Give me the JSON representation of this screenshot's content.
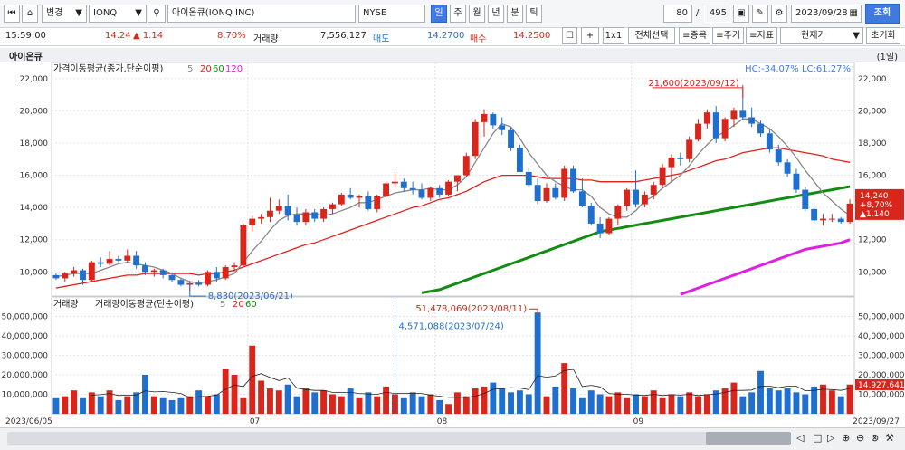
{
  "toolbar": {
    "first_icon": "first-page-icon",
    "home_icon": "home-icon",
    "mode": "변경",
    "code": "IONQ",
    "name": "아이온큐(IONQ INC)",
    "exchange": "NYSE",
    "periods": [
      "일",
      "주",
      "월",
      "년",
      "분",
      "틱"
    ],
    "count": "80",
    "total": "495",
    "date": "2023/09/28",
    "query_label": "조회"
  },
  "info": {
    "time": "15:59:00",
    "price": "14.24",
    "change": "▲ 1.14",
    "rate": "8.70%",
    "vol_label": "거래량",
    "volume": "7,556,127",
    "ask_label": "매도",
    "ask": "14.2700",
    "bid_label": "매수",
    "bid": "14.2500",
    "plus": "+",
    "ratio": "1x1",
    "select_all": "전체선택",
    "stock": "≡종목",
    "cycle": "≡주기",
    "indicator": "≡지표",
    "current_price": "현재가",
    "reset": "초기화"
  },
  "chart_title": "아이온큐",
  "chart_period": "(1일)",
  "accent": "#3f7ae0",
  "up_color": "#d8261c",
  "down_color": "#1f6fd1",
  "chart_data": [
    {
      "type": "candlestick",
      "title": "가격이동평균(종가,단순이평)",
      "ma_periods": [
        "5",
        "20",
        "60",
        "120"
      ],
      "ma_colors": [
        "#888888",
        "#e0201a",
        "#148c14",
        "#e020e0"
      ],
      "stats": "HC:-34.07% LC:61.27%",
      "ylim": [
        8500,
        23000
      ],
      "yticks": [
        "22,000",
        "20,000",
        "18,000",
        "16,000",
        "14,000",
        "12,000",
        "10,000"
      ],
      "x_labels": [
        "2023/06/05",
        "07",
        "08",
        "09",
        "2023/09/27"
      ],
      "high_annotation": "21,600(2023/09/12)",
      "low_annotation": "8,830(2023/06/21)",
      "last_price": "14,240",
      "last_rate": "+8,70%",
      "last_change": "▲1,140",
      "candles": [
        [
          9.8,
          9.9,
          9.5,
          9.6
        ],
        [
          9.6,
          10.0,
          9.4,
          9.9
        ],
        [
          9.9,
          10.3,
          9.7,
          10.1
        ],
        [
          10.1,
          10.2,
          9.2,
          9.5
        ],
        [
          9.5,
          10.7,
          9.4,
          10.6
        ],
        [
          10.6,
          10.9,
          10.3,
          10.5
        ],
        [
          10.5,
          11.3,
          10.4,
          10.8
        ],
        [
          10.8,
          11.0,
          10.6,
          10.7
        ],
        [
          10.7,
          11.4,
          10.6,
          11.0
        ],
        [
          11.0,
          11.3,
          10.2,
          10.4
        ],
        [
          10.4,
          10.6,
          9.8,
          10.0
        ],
        [
          10.0,
          10.2,
          9.7,
          10.1
        ],
        [
          10.1,
          10.2,
          9.6,
          9.8
        ],
        [
          9.8,
          9.9,
          9.4,
          9.5
        ],
        [
          9.5,
          9.6,
          9.1,
          9.2
        ],
        [
          9.2,
          9.4,
          8.83,
          9.3
        ],
        [
          9.3,
          9.5,
          9.1,
          9.2
        ],
        [
          9.2,
          10.1,
          9.1,
          10.0
        ],
        [
          10.0,
          10.3,
          9.4,
          9.6
        ],
        [
          9.6,
          10.4,
          9.5,
          10.3
        ],
        [
          10.3,
          10.6,
          10.0,
          10.4
        ],
        [
          10.4,
          13.0,
          10.3,
          12.9
        ],
        [
          12.9,
          13.5,
          12.5,
          13.3
        ],
        [
          13.3,
          13.6,
          13.0,
          13.4
        ],
        [
          13.4,
          14.6,
          13.1,
          13.8
        ],
        [
          13.8,
          14.5,
          13.6,
          14.1
        ],
        [
          14.1,
          14.8,
          13.2,
          13.5
        ],
        [
          13.5,
          14.0,
          12.9,
          13.1
        ],
        [
          13.1,
          13.9,
          12.9,
          13.7
        ],
        [
          13.7,
          13.9,
          13.1,
          13.3
        ],
        [
          13.3,
          14.0,
          13.1,
          13.9
        ],
        [
          13.9,
          14.3,
          13.6,
          14.2
        ],
        [
          14.2,
          14.9,
          14.1,
          14.8
        ],
        [
          14.8,
          15.2,
          14.5,
          14.6
        ],
        [
          14.6,
          14.8,
          14.0,
          14.7
        ],
        [
          14.7,
          15.0,
          13.8,
          13.9
        ],
        [
          13.9,
          14.8,
          13.7,
          14.7
        ],
        [
          14.7,
          15.6,
          14.6,
          15.5
        ],
        [
          15.5,
          16.2,
          15.3,
          15.6
        ],
        [
          15.6,
          15.8,
          15.0,
          15.2
        ],
        [
          15.2,
          15.6,
          14.8,
          15.1
        ],
        [
          15.1,
          15.5,
          14.5,
          14.6
        ],
        [
          14.6,
          15.3,
          14.4,
          15.2
        ],
        [
          15.2,
          15.4,
          14.6,
          14.8
        ],
        [
          14.8,
          15.7,
          14.7,
          15.6
        ],
        [
          15.6,
          16.0,
          15.0,
          16.0
        ],
        [
          16.0,
          17.4,
          15.9,
          17.2
        ],
        [
          17.2,
          19.5,
          17.0,
          19.3
        ],
        [
          19.3,
          20.1,
          18.4,
          19.8
        ],
        [
          19.8,
          19.9,
          18.9,
          19.1
        ],
        [
          19.1,
          19.6,
          18.5,
          18.8
        ],
        [
          18.8,
          19.0,
          17.5,
          17.7
        ],
        [
          17.7,
          17.9,
          16.2,
          16.2
        ],
        [
          16.2,
          16.5,
          15.3,
          15.4
        ],
        [
          15.4,
          15.8,
          14.2,
          14.4
        ],
        [
          14.4,
          15.5,
          14.3,
          15.2
        ],
        [
          15.2,
          15.5,
          14.5,
          14.6
        ],
        [
          14.6,
          16.6,
          14.4,
          16.4
        ],
        [
          16.4,
          16.6,
          14.9,
          15.0
        ],
        [
          15.0,
          15.8,
          14.0,
          14.1
        ],
        [
          14.1,
          14.3,
          12.9,
          13.0
        ],
        [
          13.0,
          13.4,
          12.1,
          12.4
        ],
        [
          12.4,
          13.4,
          12.3,
          13.3
        ],
        [
          13.3,
          14.2,
          12.9,
          14.1
        ],
        [
          14.1,
          15.2,
          13.8,
          15.1
        ],
        [
          15.1,
          16.3,
          14.0,
          14.2
        ],
        [
          14.2,
          15.0,
          14.0,
          14.8
        ],
        [
          14.8,
          15.6,
          14.5,
          15.4
        ],
        [
          15.4,
          16.7,
          15.2,
          16.5
        ],
        [
          16.5,
          17.3,
          15.6,
          17.1
        ],
        [
          17.1,
          17.4,
          16.6,
          17.0
        ],
        [
          17.0,
          18.4,
          16.8,
          18.2
        ],
        [
          18.2,
          19.5,
          18.1,
          19.2
        ],
        [
          19.2,
          20.1,
          18.9,
          19.9
        ],
        [
          19.9,
          20.3,
          18.0,
          18.3
        ],
        [
          18.3,
          19.6,
          18.1,
          19.5
        ],
        [
          19.5,
          20.2,
          19.0,
          20.0
        ],
        [
          20.0,
          21.6,
          19.4,
          19.6
        ],
        [
          19.6,
          20.2,
          19.0,
          19.2
        ],
        [
          19.2,
          19.4,
          18.4,
          18.6
        ],
        [
          18.6,
          18.9,
          17.4,
          17.6
        ],
        [
          17.6,
          17.9,
          16.6,
          16.8
        ],
        [
          16.8,
          17.0,
          15.9,
          16.1
        ],
        [
          16.1,
          16.4,
          14.9,
          15.1
        ],
        [
          15.1,
          15.3,
          13.8,
          13.9
        ],
        [
          13.9,
          14.1,
          13.0,
          13.2
        ],
        [
          13.2,
          13.6,
          12.9,
          13.3
        ],
        [
          13.3,
          13.6,
          13.1,
          13.3
        ],
        [
          13.3,
          13.4,
          13.0,
          13.1
        ],
        [
          13.1,
          14.5,
          13.0,
          14.24
        ]
      ],
      "ma5": [
        9.7,
        9.8,
        9.9,
        9.9,
        9.9,
        10.1,
        10.3,
        10.5,
        10.6,
        10.5,
        10.4,
        10.3,
        10.1,
        9.9,
        9.6,
        9.4,
        9.3,
        9.4,
        9.5,
        9.7,
        9.9,
        10.6,
        11.3,
        11.9,
        12.6,
        13.2,
        13.5,
        13.6,
        13.6,
        13.6,
        13.5,
        13.6,
        13.8,
        14.0,
        14.3,
        14.3,
        14.5,
        14.7,
        14.9,
        15.0,
        15.1,
        15.1,
        15.2,
        15.1,
        15.1,
        15.4,
        15.9,
        16.8,
        17.7,
        18.6,
        19.2,
        19.0,
        18.3,
        17.4,
        16.7,
        16.0,
        15.6,
        15.3,
        15.1,
        15.1,
        14.7,
        14.0,
        13.6,
        13.4,
        13.4,
        13.8,
        14.4,
        14.7,
        15.2,
        15.6,
        16.0,
        16.6,
        17.3,
        17.9,
        18.4,
        18.7,
        19.1,
        19.5,
        19.5,
        19.2,
        18.9,
        18.4,
        17.8,
        17.1,
        16.3,
        15.6,
        14.9,
        14.4,
        13.9,
        13.5
      ],
      "ma20": [
        9.0,
        9.1,
        9.2,
        9.3,
        9.4,
        9.5,
        9.6,
        9.7,
        9.8,
        9.8,
        9.9,
        9.9,
        9.9,
        9.9,
        9.9,
        9.9,
        9.8,
        9.9,
        9.9,
        10.0,
        10.1,
        10.3,
        10.5,
        10.7,
        10.9,
        11.1,
        11.3,
        11.5,
        11.7,
        11.8,
        12.0,
        12.2,
        12.4,
        12.6,
        12.8,
        13.0,
        13.2,
        13.4,
        13.6,
        13.8,
        14.0,
        14.1,
        14.3,
        14.5,
        14.6,
        14.8,
        15.0,
        15.3,
        15.6,
        15.8,
        16.0,
        16.0,
        16.0,
        16.0,
        15.9,
        15.8,
        15.8,
        15.8,
        15.8,
        15.7,
        15.7,
        15.6,
        15.6,
        15.6,
        15.6,
        15.6,
        15.7,
        15.8,
        15.9,
        16.0,
        16.1,
        16.3,
        16.5,
        16.7,
        16.9,
        17.0,
        17.2,
        17.4,
        17.5,
        17.6,
        17.7,
        17.7,
        17.6,
        17.5,
        17.4,
        17.3,
        17.2,
        17.0,
        16.9,
        16.8
      ],
      "ma60": [
        null,
        null,
        null,
        null,
        null,
        null,
        null,
        null,
        null,
        null,
        null,
        null,
        null,
        null,
        null,
        null,
        null,
        null,
        null,
        null,
        null,
        null,
        null,
        null,
        null,
        null,
        null,
        null,
        null,
        null,
        null,
        null,
        null,
        null,
        null,
        null,
        null,
        null,
        null,
        null,
        null,
        8.7,
        8.8,
        8.9,
        9.1,
        9.3,
        9.5,
        9.7,
        9.9,
        10.1,
        10.3,
        10.5,
        10.7,
        10.9,
        11.1,
        11.3,
        11.5,
        11.7,
        11.9,
        12.1,
        12.3,
        12.5,
        12.6,
        12.7,
        12.8,
        12.9,
        13.0,
        13.1,
        13.2,
        13.3,
        13.4,
        13.5,
        13.6,
        13.7,
        13.8,
        13.9,
        14.0,
        14.1,
        14.2,
        14.3,
        14.4,
        14.5,
        14.6,
        14.7,
        14.8,
        14.9,
        15.0,
        15.1,
        15.2,
        15.3
      ],
      "ma120": [
        null,
        null,
        null,
        null,
        null,
        null,
        null,
        null,
        null,
        null,
        null,
        null,
        null,
        null,
        null,
        null,
        null,
        null,
        null,
        null,
        null,
        null,
        null,
        null,
        null,
        null,
        null,
        null,
        null,
        null,
        null,
        null,
        null,
        null,
        null,
        null,
        null,
        null,
        null,
        null,
        null,
        null,
        null,
        null,
        null,
        null,
        null,
        null,
        null,
        null,
        null,
        null,
        null,
        null,
        null,
        null,
        null,
        null,
        null,
        null,
        null,
        null,
        null,
        null,
        null,
        null,
        null,
        null,
        null,
        null,
        8.6,
        8.8,
        9.0,
        9.2,
        9.4,
        9.6,
        9.8,
        10.0,
        10.2,
        10.4,
        10.6,
        10.8,
        11.0,
        11.2,
        11.4,
        11.5,
        11.6,
        11.7,
        11.8,
        12.0
      ]
    },
    {
      "type": "bar",
      "title": "거래량",
      "ma_title": "거래량이동평균(단순이평)",
      "ma_periods": [
        "5",
        "20",
        "60"
      ],
      "ylim": [
        0,
        60000000
      ],
      "yticks": [
        "50,000,000",
        "40,000,000",
        "30,000,000",
        "20,000,000",
        "10,000,000"
      ],
      "high_annotation": "51,478,069(2023/08/11)",
      "low_annotation": "4,571,088(2023/07/24)",
      "last_volume": "14,927,641",
      "volumes": [
        8,
        9,
        12,
        8,
        11,
        9,
        12,
        7,
        9,
        11,
        20,
        9,
        8,
        7,
        8,
        9,
        12,
        9,
        10,
        23,
        20,
        8,
        35,
        17,
        13,
        12,
        15,
        9,
        13,
        11,
        12,
        10,
        9,
        13,
        8,
        11,
        9,
        14,
        10,
        8,
        11,
        9,
        10,
        7,
        5,
        11,
        9,
        13,
        14,
        16,
        13,
        11,
        12,
        10,
        52,
        9,
        14,
        26,
        13,
        8,
        12,
        10,
        9,
        11,
        8,
        10,
        9,
        12,
        8,
        10,
        9,
        11,
        9,
        10,
        12,
        13,
        16,
        9,
        11,
        22,
        13,
        12,
        13,
        11,
        10,
        14,
        15,
        12,
        9,
        15
      ]
    }
  ]
}
